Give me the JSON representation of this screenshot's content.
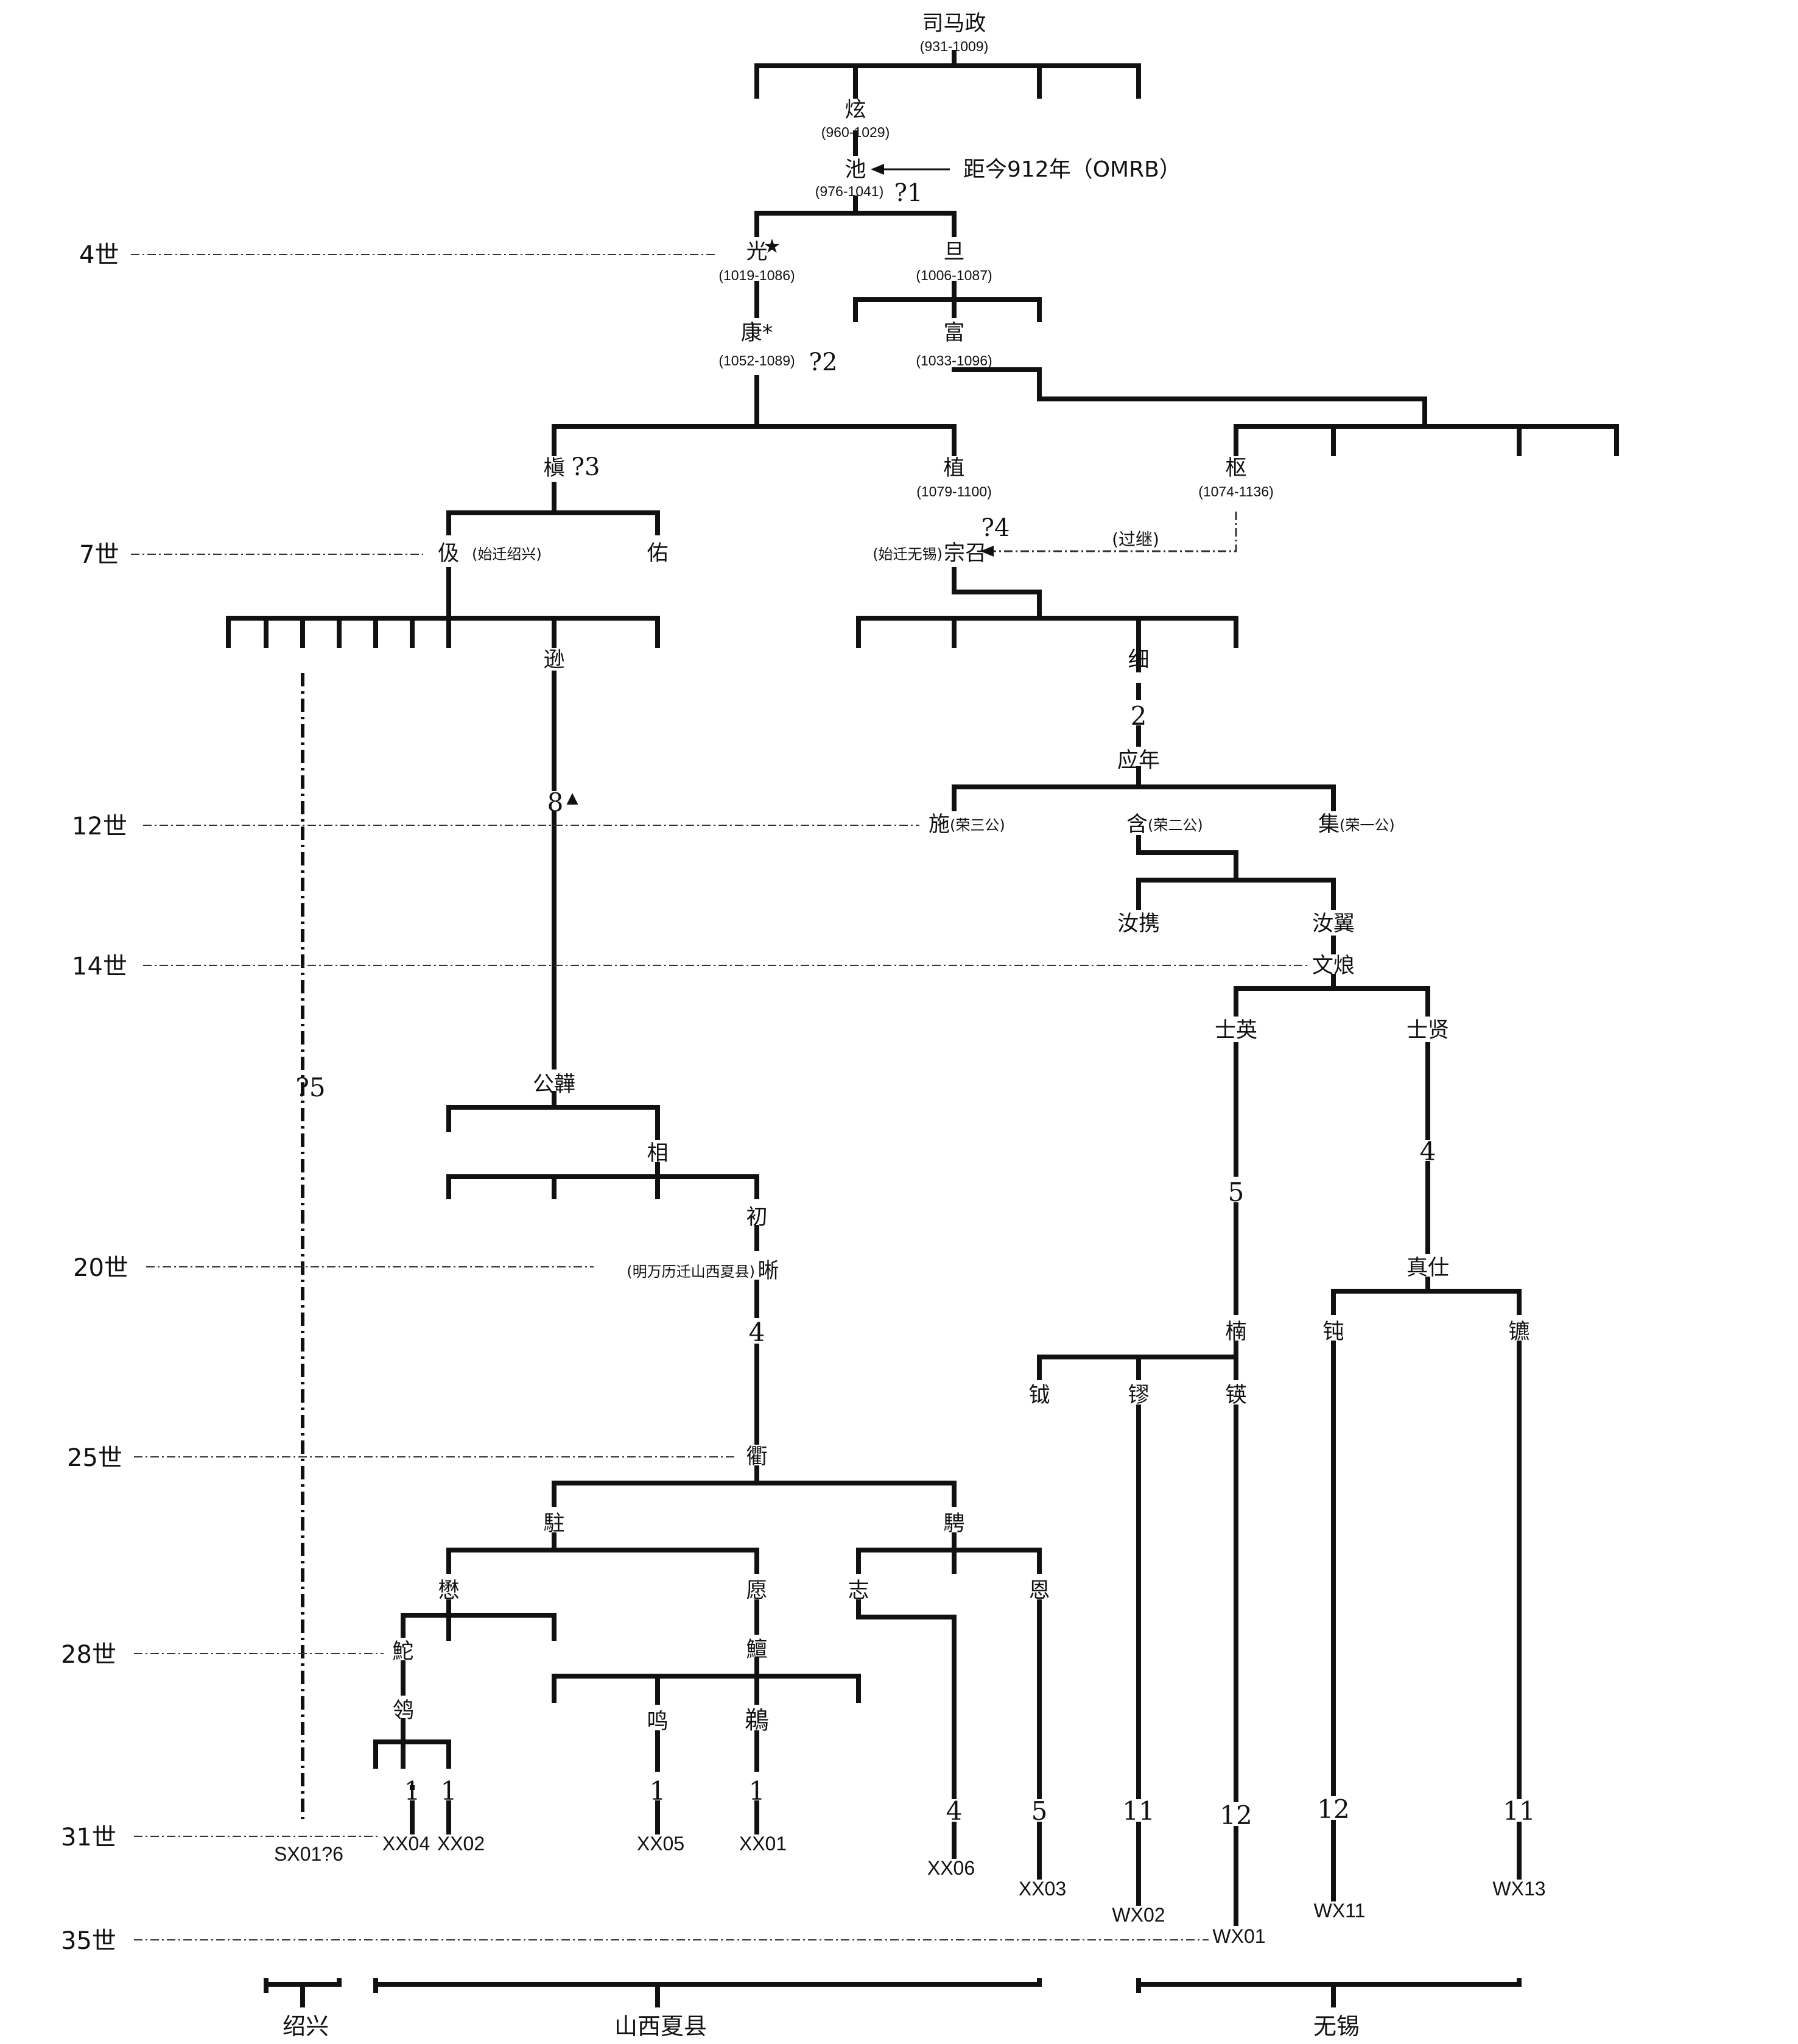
{
  "persons": [
    {
      "id": "p1",
      "name": "司马政",
      "years": "(931-1009)"
    },
    {
      "id": "p2",
      "name": "炫",
      "years": "(960-1029)"
    },
    {
      "id": "p3",
      "name": "池",
      "years": "(976-1041)",
      "mark": "?1"
    },
    {
      "id": "p4",
      "name": "光",
      "years": "(1019-1086)",
      "mark": "★"
    },
    {
      "id": "p5",
      "name": "旦",
      "years": "(1006-1087)"
    },
    {
      "id": "p6",
      "name": "康*",
      "years": "(1052-1089)",
      "mark": "?2"
    },
    {
      "id": "p7",
      "name": "富",
      "years": "(1033-1096)"
    },
    {
      "id": "p8",
      "name": "槇",
      "mark": "?3"
    },
    {
      "id": "p9",
      "name": "植",
      "years": "(1079-1100)"
    },
    {
      "id": "p10",
      "name": "枢",
      "years": "(1074-1136)"
    },
    {
      "id": "p11",
      "name": "伋",
      "note": "(始迁绍兴)"
    },
    {
      "id": "p12",
      "name": "佑"
    },
    {
      "id": "p13",
      "name": "宗召",
      "note": "(始迁无锡)",
      "mark": "?4"
    },
    {
      "id": "p14",
      "name": "逊"
    },
    {
      "id": "p15",
      "name": "细"
    },
    {
      "id": "p16",
      "name": "应年"
    },
    {
      "id": "p17",
      "name": "施",
      "note": "(荣三公)"
    },
    {
      "id": "p18",
      "name": "含",
      "note": "(荣二公)"
    },
    {
      "id": "p19",
      "name": "集",
      "note": "(荣一公)"
    },
    {
      "id": "p20",
      "name": "汝携"
    },
    {
      "id": "p21",
      "name": "汝翼"
    },
    {
      "id": "p22",
      "name": "文烺"
    },
    {
      "id": "p23",
      "name": "士英"
    },
    {
      "id": "p24",
      "name": "士贤"
    },
    {
      "id": "p25",
      "name": "公韡"
    },
    {
      "id": "p26",
      "name": "相"
    },
    {
      "id": "p27",
      "name": "初"
    },
    {
      "id": "p28",
      "name": "晰",
      "note": "(明万历迁山西夏县)"
    },
    {
      "id": "p29",
      "name": "真仕"
    },
    {
      "id": "p30",
      "name": "楠"
    },
    {
      "id": "p31",
      "name": "钝"
    },
    {
      "id": "p32",
      "name": "镳"
    },
    {
      "id": "p33",
      "name": "钺"
    },
    {
      "id": "p34",
      "name": "镠"
    },
    {
      "id": "p35",
      "name": "锳"
    },
    {
      "id": "p36",
      "name": "衢"
    },
    {
      "id": "p37",
      "name": "駐"
    },
    {
      "id": "p38",
      "name": "騁"
    },
    {
      "id": "p39",
      "name": "懋"
    },
    {
      "id": "p40",
      "name": "愿"
    },
    {
      "id": "p41",
      "name": "志"
    },
    {
      "id": "p42",
      "name": "恩"
    },
    {
      "id": "p43",
      "name": "鮀"
    },
    {
      "id": "p44",
      "name": "鱣"
    },
    {
      "id": "p45",
      "name": "鸰"
    },
    {
      "id": "p46",
      "name": "鸣"
    },
    {
      "id": "p47",
      "name": "鵜"
    }
  ],
  "generations": [
    "4世",
    "7世",
    "12世",
    "14世",
    "20世",
    "25世",
    "28世",
    "31世",
    "35世"
  ],
  "annotations": {
    "distance": "距今912年（OMRB）",
    "adoption": "(过继)",
    "omit_8": "8",
    "triangle": "▲",
    "q5": "?5",
    "omit_2": "2",
    "omit_4a": "4",
    "omit_5": "5",
    "omit_4b": "4",
    "omit_4c": "4"
  },
  "samples": [
    {
      "code": "SX01?6",
      "gap": ""
    },
    {
      "code": "XX04",
      "gap": "1"
    },
    {
      "code": "XX02",
      "gap": "1"
    },
    {
      "code": "XX05",
      "gap": "1"
    },
    {
      "code": "XX01",
      "gap": "1"
    },
    {
      "code": "XX06",
      "gap": "4"
    },
    {
      "code": "XX03",
      "gap": "5"
    },
    {
      "code": "WX02",
      "gap": "11"
    },
    {
      "code": "WX01",
      "gap": "12"
    },
    {
      "code": "WX11",
      "gap": "12"
    },
    {
      "code": "WX13",
      "gap": "11"
    }
  ],
  "regions": [
    "绍兴",
    "山西夏县",
    "无锡"
  ]
}
